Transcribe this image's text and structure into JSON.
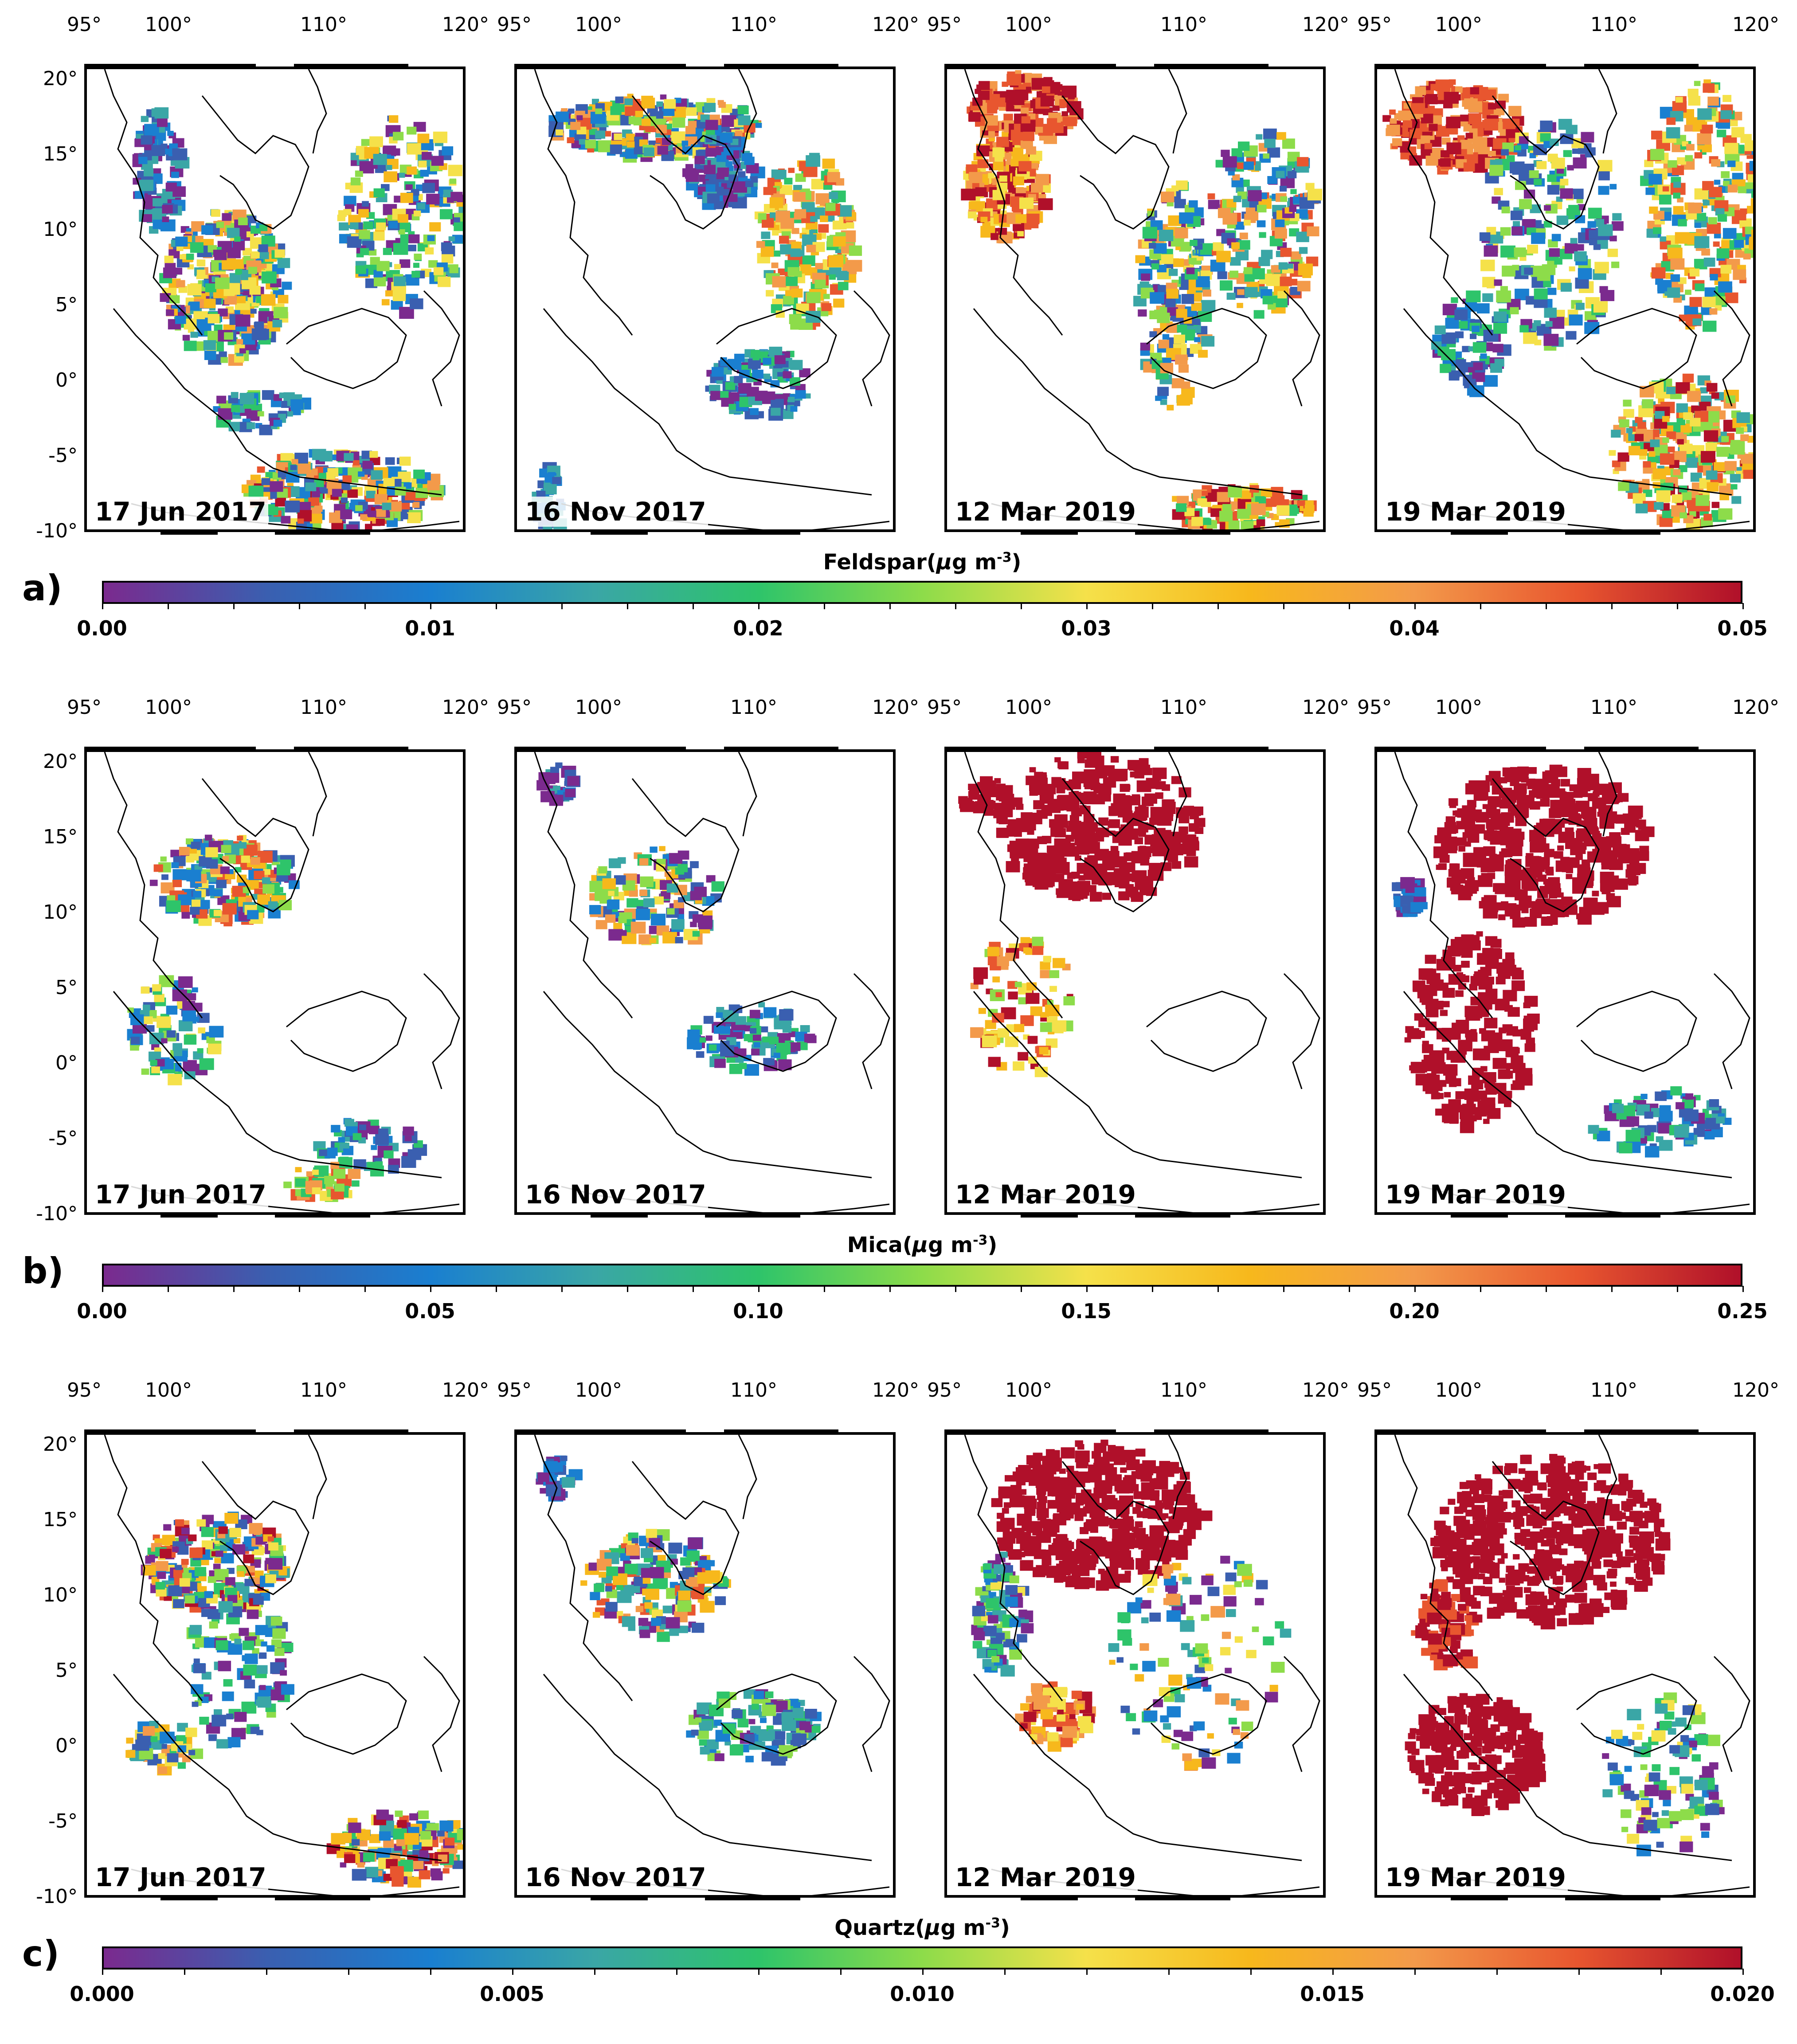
{
  "rows": [
    {
      "letter": "a)",
      "variable": "Feldspar",
      "unit_prefix": "(",
      "unit_mu": "μ",
      "unit_g": "g m",
      "unit_exp": "-3",
      "unit_suffix": ")",
      "cbar_ticks": [
        "0.00",
        "0.01",
        "0.02",
        "0.03",
        "0.04",
        "0.05"
      ],
      "panels": [
        {
          "date": "17 Jun 2017",
          "top_ticks": [
            "95°",
            "100°",
            "110°",
            "120°"
          ]
        },
        {
          "date": "16 Nov 2017",
          "top_ticks": [
            "95°",
            "100°",
            "110°",
            "120°"
          ]
        },
        {
          "date": "12 Mar 2019",
          "top_ticks": [
            "95°",
            "100°",
            "110°",
            "120°"
          ]
        },
        {
          "date": "19 Mar 2019",
          "top_ticks": [
            "95°",
            "100°",
            "110°",
            "120°"
          ]
        }
      ],
      "left_ticks": [
        "20°",
        "15°",
        "10°",
        "5°",
        "0°",
        "-5°",
        "-10°"
      ]
    },
    {
      "letter": "b)",
      "variable": "Mica",
      "unit_prefix": "(",
      "unit_mu": "μ",
      "unit_g": "g m",
      "unit_exp": "-3",
      "unit_suffix": ")",
      "cbar_ticks": [
        "0.00",
        "0.05",
        "0.10",
        "0.15",
        "0.20",
        "0.25"
      ],
      "panels": [
        {
          "date": "17 Jun 2017",
          "top_ticks": [
            "95°",
            "100°",
            "110°",
            "120°"
          ]
        },
        {
          "date": "16 Nov 2017",
          "top_ticks": [
            "95°",
            "100°",
            "110°",
            "120°"
          ]
        },
        {
          "date": "12 Mar 2019",
          "top_ticks": [
            "95°",
            "100°",
            "110°",
            "120°"
          ]
        },
        {
          "date": "19 Mar 2019",
          "top_ticks": [
            "95°",
            "100°",
            "110°",
            "120°"
          ]
        }
      ],
      "left_ticks": [
        "20°",
        "15°",
        "10°",
        "5°",
        "0°",
        "-5°",
        "-10°"
      ]
    },
    {
      "letter": "c)",
      "variable": "Quartz",
      "unit_prefix": "(",
      "unit_mu": "μ",
      "unit_g": "g m",
      "unit_exp": "-3",
      "unit_suffix": ")",
      "cbar_ticks": [
        "0.000",
        "0.005",
        "0.010",
        "0.015",
        "0.020"
      ],
      "panels": [
        {
          "date": "17 Jun 2017",
          "top_ticks": [
            "95°",
            "100°",
            "110°",
            "120°"
          ]
        },
        {
          "date": "16 Nov 2017",
          "top_ticks": [
            "95°",
            "100°",
            "110°",
            "120°"
          ]
        },
        {
          "date": "12 Mar 2019",
          "top_ticks": [
            "95°",
            "100°",
            "110°",
            "120°"
          ]
        },
        {
          "date": "19 Mar 2019",
          "top_ticks": [
            "95°",
            "100°",
            "110°",
            "120°"
          ]
        }
      ],
      "left_ticks": [
        "20°",
        "15°",
        "10°",
        "5°",
        "0°",
        "-5°",
        "-10°"
      ]
    }
  ],
  "colormap": [
    "#7b2a8e",
    "#3a5fb0",
    "#1a7fd0",
    "#3aa6a6",
    "#2ec46a",
    "#8ddc4a",
    "#f5e14a",
    "#f7b81c",
    "#f39a4a",
    "#e8562f",
    "#b0102a"
  ]
}
